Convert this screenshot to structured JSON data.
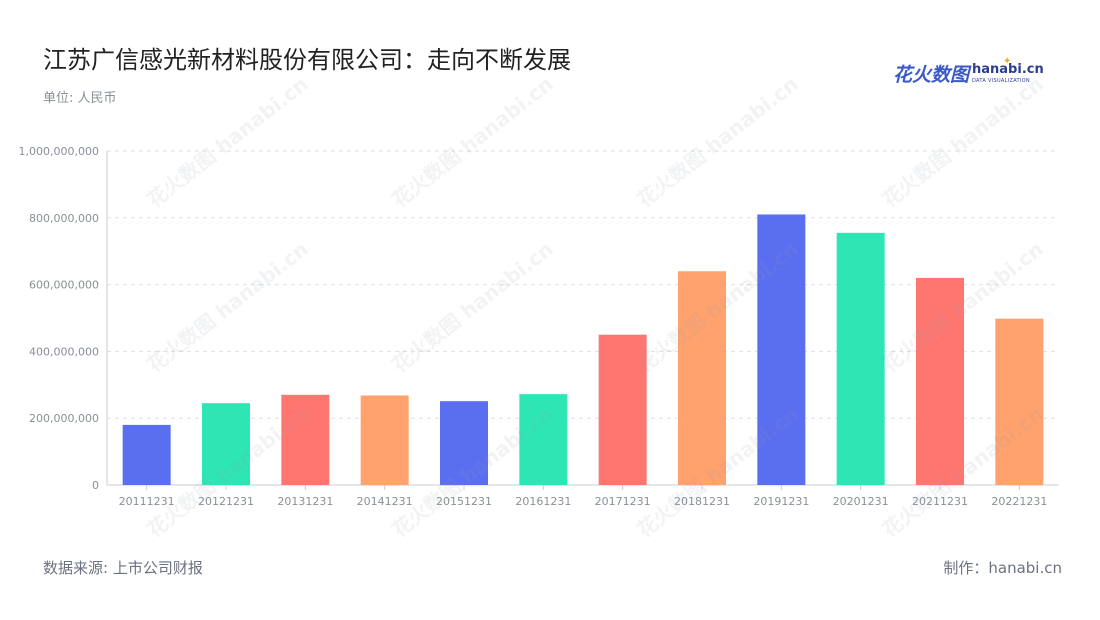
{
  "header": {
    "title": "江苏广信感光新材料股份有限公司：走向不断发展",
    "unit": "单位: 人民币"
  },
  "logo": {
    "cn": "花火数图",
    "en": "hanabi.cn",
    "tagline": "DATA VISUALIZATION",
    "watermark": "花火数图 hanabi.cn"
  },
  "footer": {
    "source": "数据来源: 上市公司财报",
    "credit": "制作：hanabi.cn"
  },
  "chart_data": {
    "type": "bar",
    "title": "江苏广信感光新材料股份有限公司：走向不断发展",
    "xlabel": "",
    "ylabel": "",
    "ylim": [
      0,
      1000000000
    ],
    "yticks": [
      0,
      200000000,
      400000000,
      600000000,
      800000000,
      1000000000
    ],
    "ytick_labels": [
      "0",
      "200,000,000",
      "400,000,000",
      "600,000,000",
      "800,000,000",
      "1,000,000,000"
    ],
    "grid": true,
    "categories": [
      "20111231",
      "20121231",
      "20131231",
      "20141231",
      "20151231",
      "20161231",
      "20171231",
      "20181231",
      "20191231",
      "20201231",
      "20211231",
      "20221231"
    ],
    "values": [
      180000000,
      245000000,
      270000000,
      268000000,
      251000000,
      272000000,
      450000000,
      640000000,
      810000000,
      755000000,
      620000000,
      498000000
    ],
    "colors": [
      "#5a6ff0",
      "#2ee6b4",
      "#ff7670",
      "#ffa26e",
      "#5a6ff0",
      "#2ee6b4",
      "#ff7670",
      "#ffa26e",
      "#5a6ff0",
      "#2ee6b4",
      "#ff7670",
      "#ffa26e"
    ]
  }
}
